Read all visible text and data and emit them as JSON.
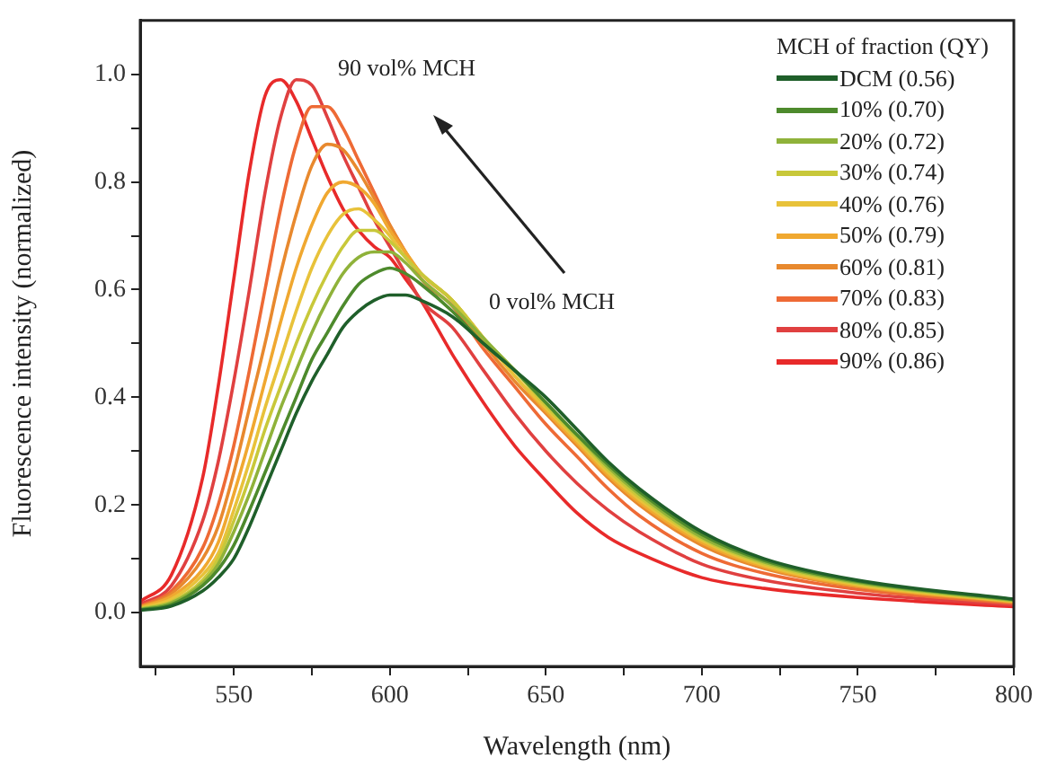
{
  "chart_data": {
    "type": "line",
    "xlabel": "Wavelength (nm)",
    "ylabel": "Fluorescence intensity (normalized)",
    "legend_title": "MCH of fraction (QY)",
    "x": [
      520,
      530,
      540,
      545,
      550,
      555,
      560,
      565,
      570,
      575,
      580,
      585,
      590,
      595,
      600,
      605,
      610,
      620,
      630,
      640,
      650,
      660,
      670,
      680,
      700,
      720,
      750,
      800
    ],
    "series": [
      {
        "name": "DCM (0.56)",
        "color": "#1f5f2a",
        "values": [
          0.004,
          0.012,
          0.04,
          0.065,
          0.1,
          0.16,
          0.23,
          0.3,
          0.37,
          0.43,
          0.48,
          0.53,
          0.56,
          0.58,
          0.59,
          0.59,
          0.58,
          0.55,
          0.5,
          0.45,
          0.4,
          0.34,
          0.28,
          0.23,
          0.15,
          0.1,
          0.06,
          0.025
        ]
      },
      {
        "name": "10% (0.70)",
        "color": "#4d8a2c",
        "values": [
          0.005,
          0.015,
          0.05,
          0.08,
          0.125,
          0.19,
          0.26,
          0.33,
          0.4,
          0.47,
          0.52,
          0.57,
          0.61,
          0.63,
          0.64,
          0.63,
          0.61,
          0.56,
          0.5,
          0.45,
          0.39,
          0.33,
          0.275,
          0.225,
          0.145,
          0.097,
          0.058,
          0.024
        ]
      },
      {
        "name": "20% (0.72)",
        "color": "#8fb23a",
        "values": [
          0.006,
          0.018,
          0.055,
          0.09,
          0.15,
          0.22,
          0.3,
          0.38,
          0.45,
          0.52,
          0.58,
          0.63,
          0.66,
          0.67,
          0.67,
          0.65,
          0.62,
          0.57,
          0.51,
          0.45,
          0.39,
          0.33,
          0.27,
          0.22,
          0.14,
          0.094,
          0.056,
          0.023
        ]
      },
      {
        "name": "30% (0.74)",
        "color": "#c8c83a",
        "values": [
          0.007,
          0.02,
          0.06,
          0.1,
          0.17,
          0.25,
          0.34,
          0.42,
          0.5,
          0.57,
          0.63,
          0.68,
          0.71,
          0.71,
          0.69,
          0.66,
          0.63,
          0.58,
          0.51,
          0.45,
          0.385,
          0.325,
          0.265,
          0.215,
          0.137,
          0.091,
          0.054,
          0.022
        ]
      },
      {
        "name": "40% (0.76)",
        "color": "#e8c23a",
        "values": [
          0.008,
          0.025,
          0.07,
          0.11,
          0.19,
          0.28,
          0.38,
          0.47,
          0.56,
          0.64,
          0.7,
          0.74,
          0.75,
          0.73,
          0.7,
          0.66,
          0.63,
          0.58,
          0.51,
          0.44,
          0.38,
          0.32,
          0.26,
          0.21,
          0.134,
          0.088,
          0.052,
          0.021
        ]
      },
      {
        "name": "50% (0.79)",
        "color": "#f0a830",
        "values": [
          0.01,
          0.03,
          0.08,
          0.13,
          0.22,
          0.32,
          0.43,
          0.54,
          0.64,
          0.72,
          0.78,
          0.8,
          0.79,
          0.76,
          0.71,
          0.67,
          0.63,
          0.58,
          0.51,
          0.44,
          0.375,
          0.315,
          0.255,
          0.205,
          0.13,
          0.085,
          0.05,
          0.02
        ]
      },
      {
        "name": "60% (0.81)",
        "color": "#e8892e",
        "values": [
          0.01,
          0.035,
          0.1,
          0.16,
          0.26,
          0.38,
          0.5,
          0.63,
          0.74,
          0.83,
          0.87,
          0.86,
          0.82,
          0.77,
          0.72,
          0.67,
          0.63,
          0.58,
          0.5,
          0.43,
          0.37,
          0.31,
          0.25,
          0.2,
          0.125,
          0.082,
          0.048,
          0.019
        ]
      },
      {
        "name": "70% (0.83)",
        "color": "#ee6a35",
        "values": [
          0.012,
          0.04,
          0.12,
          0.2,
          0.31,
          0.45,
          0.6,
          0.75,
          0.87,
          0.94,
          0.94,
          0.9,
          0.84,
          0.78,
          0.72,
          0.67,
          0.62,
          0.57,
          0.49,
          0.42,
          0.35,
          0.29,
          0.23,
          0.18,
          0.11,
          0.073,
          0.043,
          0.017
        ]
      },
      {
        "name": "80% (0.85)",
        "color": "#e04040",
        "values": [
          0.015,
          0.05,
          0.17,
          0.28,
          0.43,
          0.6,
          0.78,
          0.92,
          0.99,
          0.98,
          0.92,
          0.85,
          0.79,
          0.73,
          0.68,
          0.63,
          0.58,
          0.53,
          0.45,
          0.37,
          0.3,
          0.24,
          0.19,
          0.15,
          0.09,
          0.06,
          0.036,
          0.014
        ]
      },
      {
        "name": "90% (0.86)",
        "color": "#e82a2a",
        "values": [
          0.02,
          0.07,
          0.25,
          0.42,
          0.62,
          0.82,
          0.96,
          0.99,
          0.95,
          0.88,
          0.81,
          0.75,
          0.71,
          0.68,
          0.66,
          0.62,
          0.58,
          0.48,
          0.39,
          0.31,
          0.245,
          0.185,
          0.14,
          0.11,
          0.065,
          0.045,
          0.028,
          0.011
        ]
      }
    ],
    "xlim": [
      520,
      800
    ],
    "xticks": [
      {
        "value": 525,
        "label": null
      },
      550,
      {
        "value": 575,
        "label": null
      },
      600,
      {
        "value": 625,
        "label": null
      },
      650,
      {
        "value": 675,
        "label": null
      },
      700,
      {
        "value": 725,
        "label": null
      },
      750,
      {
        "value": 775,
        "label": null
      },
      800
    ],
    "ylim": [
      -0.1,
      1.1
    ],
    "yticks": [
      {
        "value": 0,
        "label": "0.0"
      },
      {
        "value": 0.1,
        "label": null
      },
      {
        "value": 0.2,
        "label": "0.2"
      },
      {
        "value": 0.3,
        "label": null
      },
      {
        "value": 0.4,
        "label": "0.4"
      },
      {
        "value": 0.5,
        "label": null
      },
      {
        "value": 0.6,
        "label": "0.6"
      },
      {
        "value": 0.7,
        "label": null
      },
      {
        "value": 0.8,
        "label": "0.8"
      },
      {
        "value": 0.9,
        "label": null
      },
      {
        "value": 1,
        "label": "1.0"
      }
    ],
    "annotations": [
      "90 vol% MCH",
      "0 vol% MCH"
    ],
    "grid": false,
    "legend": "top right",
    "marker": "none",
    "line_style": "solid"
  }
}
